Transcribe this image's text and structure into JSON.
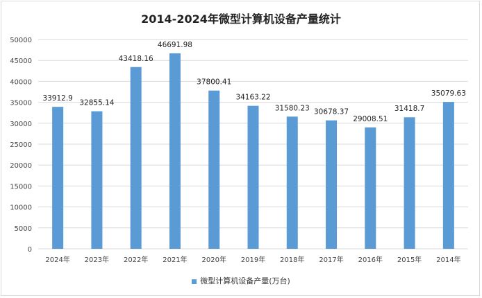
{
  "chart_data": {
    "type": "bar",
    "title": "2014-2024年微型计算机设备产量统计",
    "categories": [
      "2024年",
      "2023年",
      "2022年",
      "2021年",
      "2020年",
      "2019年",
      "2018年",
      "2017年",
      "2016年",
      "2015年",
      "2014年"
    ],
    "series": [
      {
        "name": "微型计算机设备产量(万台)",
        "values": [
          33912.9,
          32855.14,
          43418.16,
          46691.98,
          37800.41,
          34163.22,
          31580.23,
          30678.37,
          29008.51,
          31418.7,
          35079.63
        ],
        "color": "#5b9bd5"
      }
    ],
    "value_labels": [
      "33912.9",
      "32855.14",
      "43418.16",
      "46691.98",
      "37800.41",
      "34163.22",
      "31580.23",
      "30678.37",
      "29008.51",
      "31418.7",
      "35079.63"
    ],
    "yticks": [
      "0",
      "5000",
      "10000",
      "15000",
      "20000",
      "25000",
      "30000",
      "35000",
      "40000",
      "45000",
      "50000"
    ],
    "ylim": [
      0,
      50000
    ],
    "grid": true,
    "legend": "bottom",
    "xlabel": "",
    "ylabel": ""
  }
}
